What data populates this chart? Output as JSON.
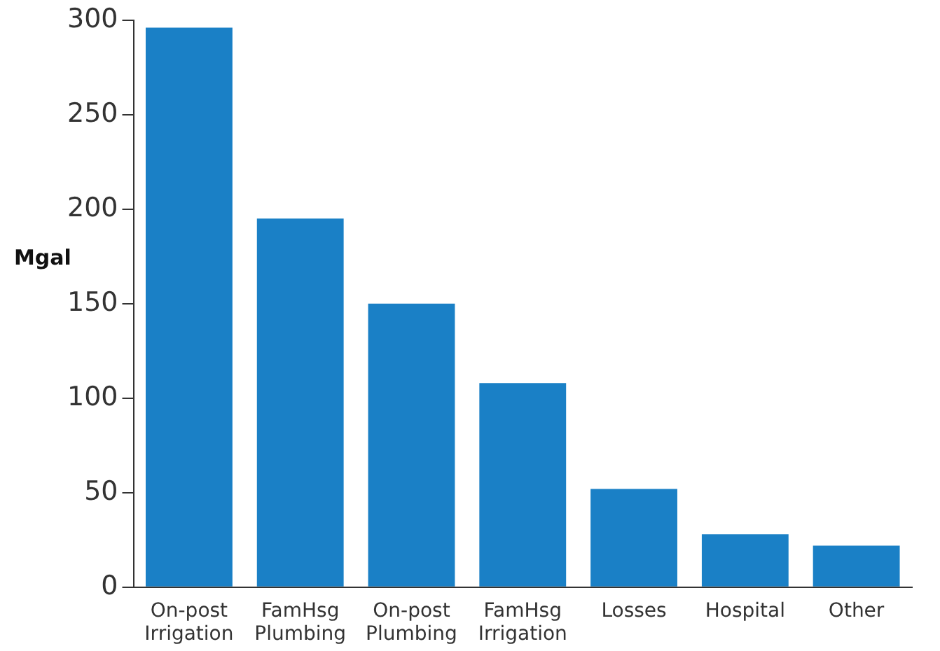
{
  "chart_data": {
    "type": "bar",
    "ylabel": "Mgal",
    "categories": [
      "On-post Irrigation",
      "FamHsg Plumbing",
      "On-post Plumbing",
      "FamHsg Irrigation",
      "Losses",
      "Hospital",
      "Other"
    ],
    "values": [
      296,
      195,
      150,
      108,
      52,
      28,
      22
    ],
    "color": "#1a80c6",
    "ylim": [
      0,
      300
    ],
    "yticks": [
      0,
      50,
      100,
      150,
      200,
      250,
      300
    ],
    "grid": false,
    "legend": false
  }
}
